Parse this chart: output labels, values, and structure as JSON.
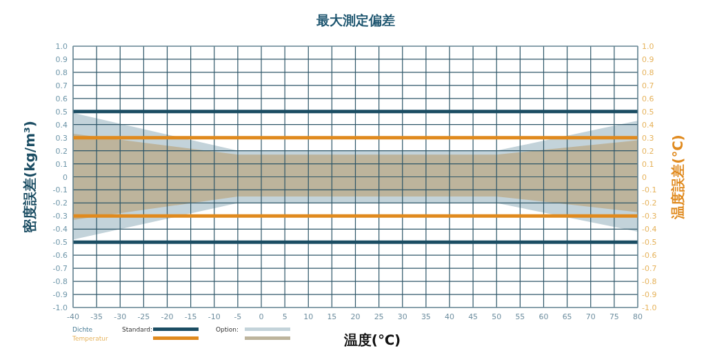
{
  "chart_data": {
    "type": "line",
    "title": "最大測定偏差",
    "xlabel": "温度(℃)",
    "ylabel": "密度誤差(kg/m³)",
    "y2label": "温度誤差(℃)",
    "xlim": [
      -40,
      80
    ],
    "xticks": [
      -40,
      -35,
      -30,
      -25,
      -20,
      -15,
      -10,
      -5,
      0,
      5,
      10,
      15,
      20,
      25,
      30,
      35,
      40,
      45,
      50,
      55,
      60,
      65,
      70,
      75,
      80
    ],
    "ylim": [
      -1,
      1
    ],
    "yticks": [
      {
        "value": -1,
        "label": "-1.0"
      },
      -0.9,
      -0.8,
      -0.7,
      -0.6,
      -0.5,
      -0.4,
      -0.3,
      -0.2,
      -0.1,
      0,
      0.1,
      0.2,
      0.3,
      0.4,
      0.5,
      0.6,
      0.7,
      0.8,
      0.9,
      {
        "value": 1,
        "label": "1.0"
      }
    ],
    "y2lim": [
      -1,
      1
    ],
    "y2ticks": [
      {
        "value": -1,
        "label": "-1.0"
      },
      -0.9,
      -0.8,
      -0.7,
      -0.6,
      -0.5,
      -0.4,
      -0.3,
      -0.2,
      -0.1,
      0,
      0.1,
      0.2,
      0.3,
      0.4,
      0.5,
      0.6,
      0.7,
      0.8,
      0.9,
      {
        "value": 1,
        "label": "1.0"
      }
    ],
    "grid": true,
    "marker": "none",
    "line_style": "solid",
    "annotations": [
      "Dichte",
      "Temperatur",
      "Standard:",
      "Option:"
    ],
    "series": [
      {
        "type": "area",
        "color": "#c3d3da",
        "x": [
          -40,
          -5,
          50,
          80
        ],
        "values": [
          0.49,
          0.2,
          0.2,
          0.43
        ]
      },
      {
        "type": "area",
        "color": "#c3d3da",
        "x": [
          -40,
          -5,
          50,
          80
        ],
        "values": [
          -0.48,
          -0.2,
          -0.2,
          -0.42
        ]
      },
      {
        "type": "area",
        "axis": "y2",
        "color": "#bdb49c",
        "x": [
          -40,
          -5,
          50,
          80
        ],
        "values": [
          0.33,
          0.17,
          0.17,
          0.28
        ]
      },
      {
        "type": "area",
        "axis": "y2",
        "color": "#bdb49c",
        "x": [
          -40,
          -5,
          50,
          80
        ],
        "values": [
          -0.33,
          -0.15,
          -0.15,
          -0.27
        ]
      },
      {
        "type": "line",
        "color": "#1b4d63",
        "x": [
          -40,
          80
        ],
        "values": [
          0.5,
          0.5
        ]
      },
      {
        "type": "line",
        "color": "#1b4d63",
        "x": [
          -40,
          80
        ],
        "values": [
          -0.5,
          -0.5
        ]
      },
      {
        "type": "line",
        "axis": "y2",
        "color": "#e08a1e",
        "x": [
          -40,
          80
        ],
        "values": [
          0.3,
          0.3
        ]
      },
      {
        "type": "line",
        "axis": "y2",
        "color": "#e08a1e",
        "x": [
          -40,
          80
        ],
        "values": [
          -0.3,
          -0.3
        ]
      }
    ]
  }
}
